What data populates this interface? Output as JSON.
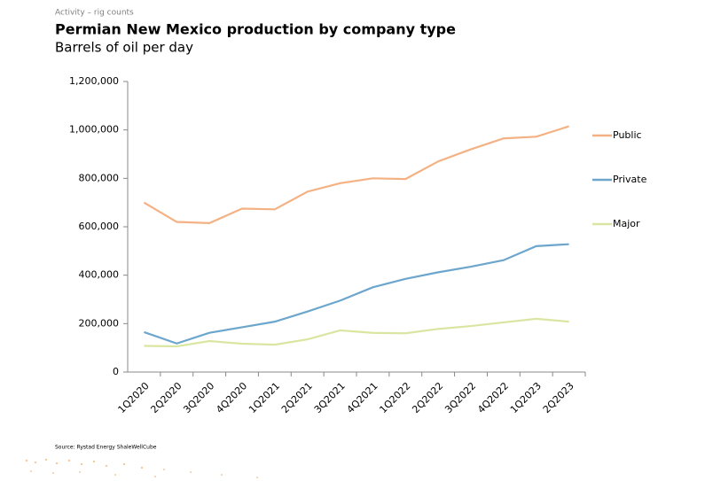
{
  "chart_data": {
    "type": "line",
    "supertitle": "Activity – rig counts",
    "title": "Permian New Mexico production by company type",
    "subtitle": "Barrels of oil per day",
    "source": "Source: Rystad Energy ShaleWellCube",
    "categories": [
      "1Q2020",
      "2Q2020",
      "3Q2020",
      "4Q2020",
      "1Q2021",
      "2Q2021",
      "3Q2021",
      "4Q2021",
      "1Q2022",
      "2Q2022",
      "3Q2022",
      "4Q2022",
      "1Q2023",
      "2Q2023"
    ],
    "series": [
      {
        "name": "Public",
        "color": "#f4b183",
        "values": [
          700000,
          620000,
          615000,
          675000,
          672000,
          745000,
          780000,
          800000,
          797000,
          870000,
          920000,
          965000,
          972000,
          1015000
        ]
      },
      {
        "name": "Private",
        "color": "#6ca6cd",
        "values": [
          165000,
          118000,
          162000,
          185000,
          208000,
          250000,
          295000,
          350000,
          385000,
          412000,
          435000,
          462000,
          520000,
          528000
        ]
      },
      {
        "name": "Major",
        "color": "#d9e6a1",
        "values": [
          108000,
          106000,
          128000,
          117000,
          113000,
          135000,
          172000,
          162000,
          160000,
          178000,
          190000,
          205000,
          220000,
          208000
        ]
      }
    ],
    "ylim": [
      0,
      1200000
    ],
    "yticks": [
      0,
      {
        "value": 200000,
        "label": "200,000"
      },
      {
        "value": 400000,
        "label": "400,000"
      },
      {
        "value": 600000,
        "label": "600,000"
      },
      {
        "value": 800000,
        "label": "800,000"
      },
      {
        "value": 1000000,
        "label": "1,000,000"
      },
      {
        "value": 1200000,
        "label": "1,200,000"
      }
    ],
    "grid": false,
    "legend": "right"
  }
}
